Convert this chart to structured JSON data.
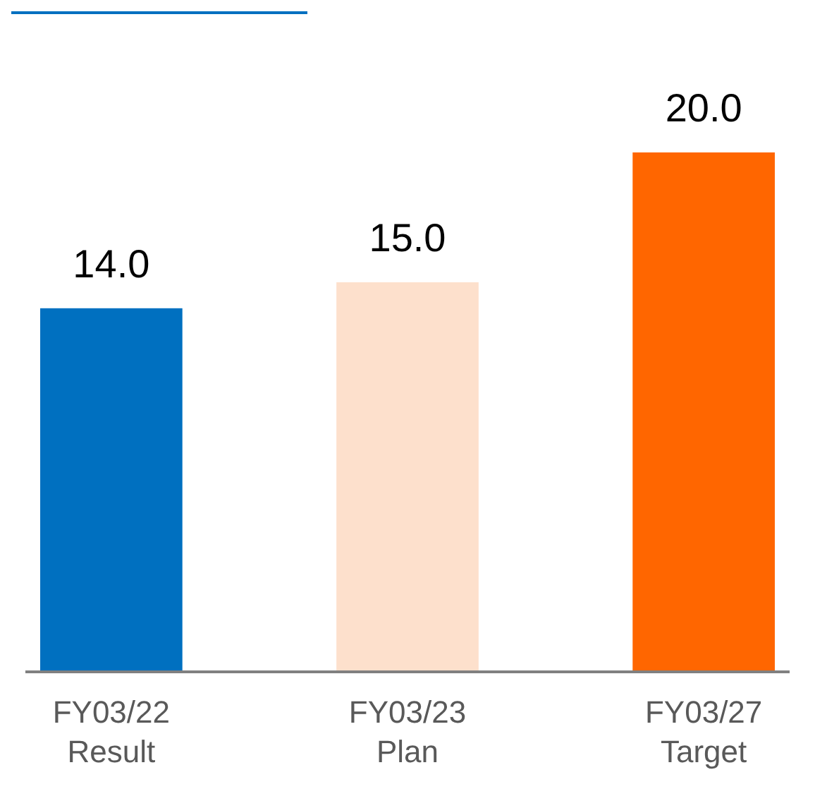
{
  "chart_data": {
    "type": "bar",
    "categories": [
      "FY03/22\nResult",
      "FY03/23\nPlan",
      "FY03/27\nTarget"
    ],
    "values": [
      14.0,
      15.0,
      20.0
    ],
    "colors": [
      "#0070c0",
      "#fde0cc",
      "#ff6600"
    ],
    "value_labels": [
      "14.0",
      "15.0",
      "20.0"
    ]
  }
}
